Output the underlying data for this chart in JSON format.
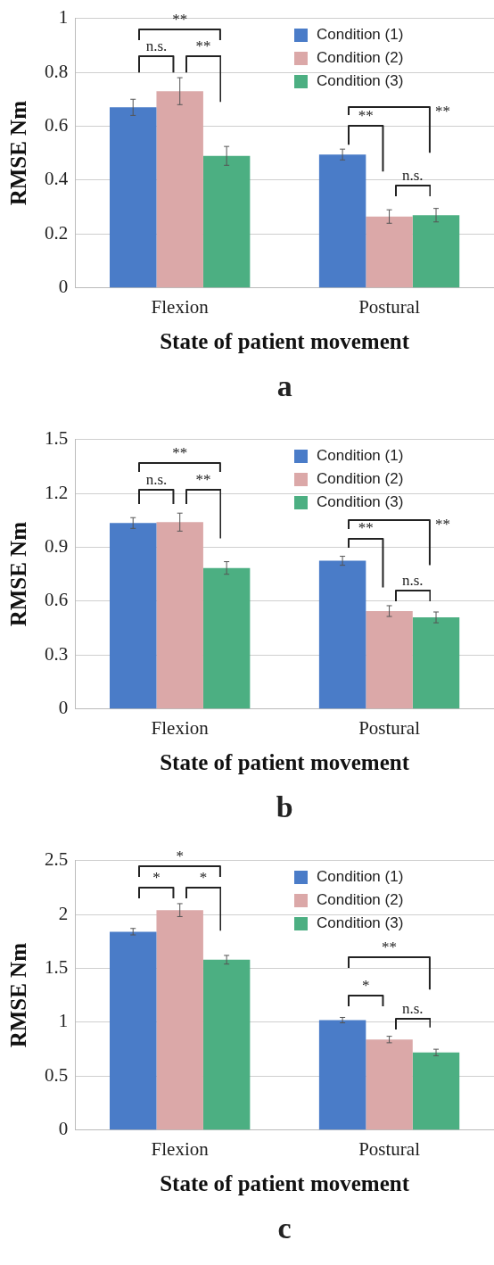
{
  "chart_data": [
    {
      "type": "bar",
      "categories": [
        "Flexion",
        "Postural"
      ],
      "xlabel": "State of patient movement",
      "ylabel": "RMSE Nm",
      "ylim": [
        0,
        1
      ],
      "yticks": [
        0,
        0.2,
        0.4,
        0.6,
        0.8,
        1
      ],
      "grid": "y",
      "legend": "top right",
      "series": [
        {
          "name": "Condition (1)",
          "color": "#4a7cc8",
          "values": [
            0.67,
            0.495
          ],
          "errors": [
            0.03,
            0.02
          ]
        },
        {
          "name": "Condition (2)",
          "color": "#dba8a8",
          "values": [
            0.73,
            0.265
          ],
          "errors": [
            0.05,
            0.025
          ]
        },
        {
          "name": "Condition (3)",
          "color": "#4caf82",
          "values": [
            0.49,
            0.27
          ],
          "errors": [
            0.035,
            0.025
          ]
        }
      ],
      "annotations": [
        "**",
        "n.s.",
        "**",
        "**",
        "**",
        "n.s.",
        "a"
      ]
    },
    {
      "type": "bar",
      "categories": [
        "Flexion",
        "Postural"
      ],
      "xlabel": "State of patient movement",
      "ylabel": "RMSE Nm",
      "ylim": [
        0,
        1.5
      ],
      "yticks": [
        0,
        0.3,
        0.6,
        0.9,
        1.2,
        1.5
      ],
      "grid": "y",
      "legend": "top right",
      "series": [
        {
          "name": "Condition (1)",
          "color": "#4a7cc8",
          "values": [
            1.035,
            0.825
          ],
          "errors": [
            0.03,
            0.025
          ]
        },
        {
          "name": "Condition (2)",
          "color": "#dba8a8",
          "values": [
            1.04,
            0.545
          ],
          "errors": [
            0.05,
            0.03
          ]
        },
        {
          "name": "Condition (3)",
          "color": "#4caf82",
          "values": [
            0.785,
            0.51
          ],
          "errors": [
            0.035,
            0.03
          ]
        }
      ],
      "annotations": [
        "**",
        "n.s.",
        "**",
        "**",
        "**",
        "n.s.",
        "b"
      ]
    },
    {
      "type": "bar",
      "categories": [
        "Flexion",
        "Postural"
      ],
      "xlabel": "State of patient movement",
      "ylabel": "RMSE Nm",
      "ylim": [
        0,
        2.5
      ],
      "yticks": [
        0,
        0.5,
        1,
        1.5,
        2,
        2.5
      ],
      "grid": "y",
      "legend": "top right",
      "series": [
        {
          "name": "Condition (1)",
          "color": "#4a7cc8",
          "values": [
            1.84,
            1.02
          ],
          "errors": [
            0.03,
            0.025
          ]
        },
        {
          "name": "Condition (2)",
          "color": "#dba8a8",
          "values": [
            2.04,
            0.84
          ],
          "errors": [
            0.06,
            0.03
          ]
        },
        {
          "name": "Condition (3)",
          "color": "#4caf82",
          "values": [
            1.58,
            0.72
          ],
          "errors": [
            0.04,
            0.03
          ]
        }
      ],
      "annotations": [
        "*",
        "*",
        "*",
        "**",
        "*",
        "n.s.",
        "c"
      ]
    }
  ]
}
